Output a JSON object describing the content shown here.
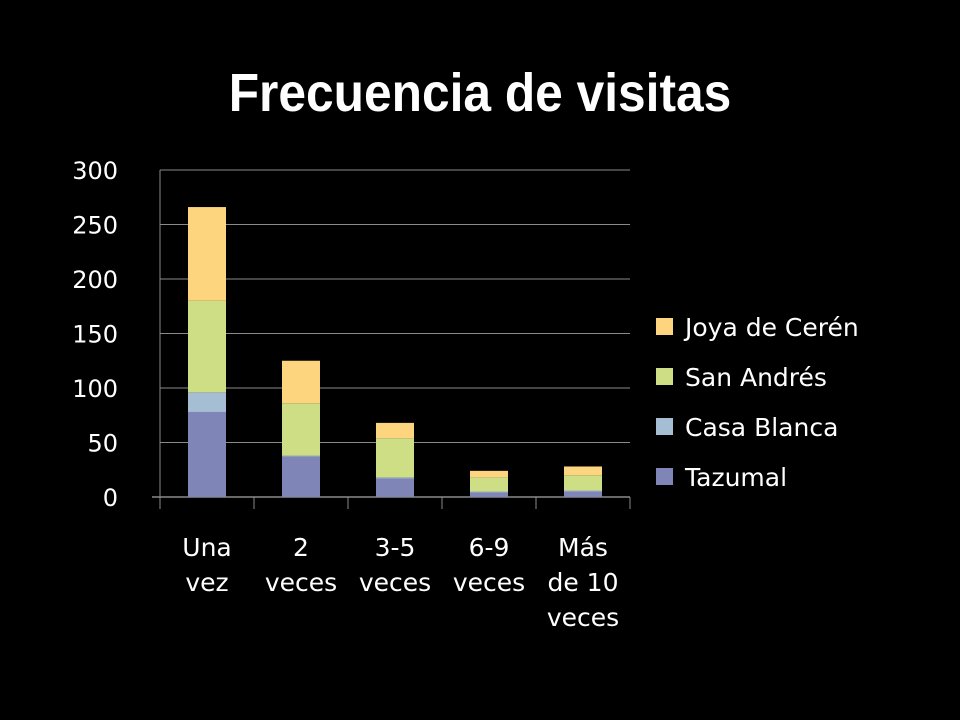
{
  "title": "Frecuencia de visitas",
  "chart_data": {
    "type": "bar",
    "stacked": true,
    "categories": [
      [
        "Una",
        "vez"
      ],
      [
        "2",
        "veces"
      ],
      [
        "3-5",
        "veces"
      ],
      [
        "6-9",
        "veces"
      ],
      [
        "Más",
        "de 10",
        "veces"
      ]
    ],
    "series": [
      {
        "name": "Tazumal",
        "color": "#7F86B7",
        "values": [
          78,
          37,
          17,
          4,
          5
        ]
      },
      {
        "name": "Casa Blanca",
        "color": "#A5BED4",
        "values": [
          18,
          1,
          1,
          1,
          1
        ]
      },
      {
        "name": "San Andrés",
        "color": "#CDDE84",
        "values": [
          84,
          48,
          36,
          13,
          14
        ]
      },
      {
        "name": "Joya de Cerén",
        "color": "#FDD57E",
        "values": [
          86,
          39,
          14,
          6,
          8
        ]
      }
    ],
    "ylim": [
      0,
      300
    ],
    "yticks": [
      0,
      50,
      100,
      150,
      200,
      250,
      300
    ],
    "grid": true,
    "legend": "right",
    "xlabel": "",
    "ylabel": ""
  }
}
